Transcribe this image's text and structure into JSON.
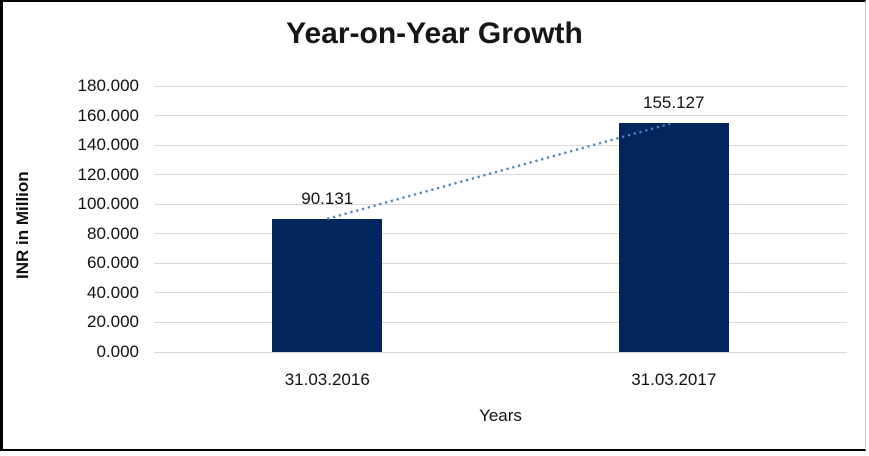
{
  "chart_data": {
    "type": "bar",
    "title": "Year-on-Year Growth",
    "xlabel": "Years",
    "ylabel": "INR in Million",
    "categories": [
      "31.03.2016",
      "31.03.2017"
    ],
    "series": [
      {
        "name": "INR in Million",
        "values": [
          90.131,
          155.127
        ]
      }
    ],
    "value_labels": [
      "90.131",
      "155.127"
    ],
    "ylim": [
      0,
      180
    ],
    "ytick_step": 20,
    "ytick_labels": [
      "180.000",
      "160.000",
      "140.000",
      "120.000",
      "100.000",
      "80.000",
      "60.000",
      "40.000",
      "20.000",
      "0.000"
    ],
    "grid": true,
    "legend": "none",
    "trendline": {
      "style": "dotted",
      "from_value": 90.131,
      "to_value": 155.127
    },
    "colors": {
      "bar": "#03255e",
      "trendline": "#4e82c4",
      "gridline": "#d9d9d9",
      "text": "#111111",
      "title_text": "#161616",
      "frame_border": "#000000",
      "frame_border_right": "#c9c9c9",
      "background": "#ffffff"
    }
  }
}
